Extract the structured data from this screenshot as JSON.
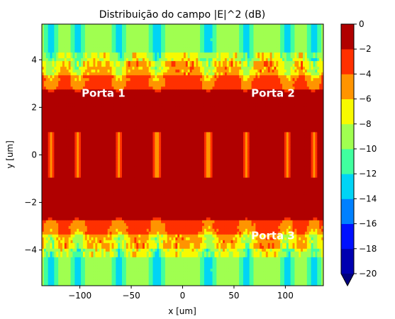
{
  "chart_data": {
    "type": "heatmap",
    "title": "Distribuição do campo |E|^2 (dB)",
    "xlabel": "x [um]",
    "ylabel": "y [um]",
    "xlim": [
      -137,
      137
    ],
    "ylim": [
      -5.5,
      5.5
    ],
    "x_ticks": [
      -100,
      -50,
      0,
      50,
      100
    ],
    "y_ticks": [
      -4,
      -2,
      0,
      2,
      4
    ],
    "x_tick_labels": [
      "−100",
      "−50",
      "0",
      "50",
      "100"
    ],
    "y_tick_labels": [
      "−4",
      "−2",
      "0",
      "2",
      "4"
    ],
    "colorbar": {
      "range": [
        -20,
        0
      ],
      "ticks": [
        0,
        -2,
        -4,
        -6,
        -8,
        -10,
        -12,
        -14,
        -16,
        -18,
        -20
      ],
      "tick_labels": [
        "0",
        "−2",
        "−4",
        "−6",
        "−8",
        "−10",
        "−12",
        "−14",
        "−16",
        "−18",
        "−20"
      ],
      "extend": "min",
      "levels": [
        {
          "from": -20,
          "to": -18,
          "color": "#0000b0"
        },
        {
          "from": -18,
          "to": -16,
          "color": "#0010ff"
        },
        {
          "from": -16,
          "to": -14,
          "color": "#0080ff"
        },
        {
          "from": -14,
          "to": -12,
          "color": "#00d4f5"
        },
        {
          "from": -12,
          "to": -10,
          "color": "#40ff9f"
        },
        {
          "from": -10,
          "to": -8,
          "color": "#a0ff50"
        },
        {
          "from": -8,
          "to": -6,
          "color": "#f8fa00"
        },
        {
          "from": -6,
          "to": -4,
          "color": "#ff9400"
        },
        {
          "from": -4,
          "to": -2,
          "color": "#ff3000"
        },
        {
          "from": -2,
          "to": 0,
          "color": "#b00000"
        }
      ],
      "extend_color": "#00007f"
    },
    "annotations": [
      {
        "text": "Porta 1",
        "x": -77,
        "y": 2.6
      },
      {
        "text": "Porta 2",
        "x": 88,
        "y": 2.6
      },
      {
        "text": "Porta 3",
        "x": 88,
        "y": -3.4
      }
    ]
  }
}
